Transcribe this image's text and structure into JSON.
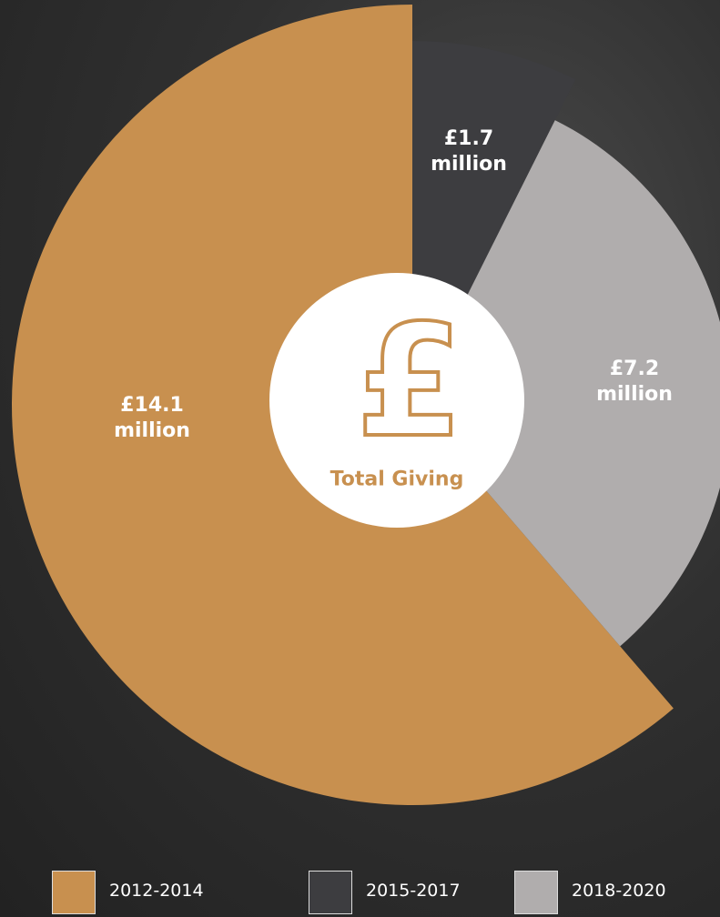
{
  "chart_data": {
    "type": "pie",
    "categories": [
      "2012-2014",
      "2015-2017",
      "2018-2020"
    ],
    "values": [
      14.1,
      1.7,
      7.2
    ],
    "value_labels": [
      "£14.1 million",
      "£1.7 million",
      "£7.2 million"
    ],
    "colors": [
      "#c8904f",
      "#3d3d40",
      "#b0adad"
    ],
    "center_symbol": "£",
    "center_label": "Total Giving",
    "legend": "bottom"
  }
}
